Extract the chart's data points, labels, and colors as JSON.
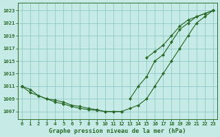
{
  "x": [
    0,
    1,
    2,
    3,
    4,
    5,
    6,
    7,
    8,
    9,
    10,
    11,
    12,
    13,
    14,
    15,
    16,
    17,
    18,
    19,
    20,
    21,
    22,
    23
  ],
  "lines": [
    [
      1011,
      null,
      null,
      null,
      null,
      null,
      null,
      null,
      null,
      null,
      null,
      null,
      null,
      1009,
      1011,
      1012.5,
      1015,
      1016,
      1018,
      1020,
      1021,
      1022,
      1022.5,
      1023
    ],
    [
      1011,
      null,
      null,
      null,
      null,
      null,
      null,
      null,
      null,
      null,
      null,
      null,
      null,
      null,
      null,
      1015.5,
      1016.5,
      1017.5,
      1019,
      1020.5,
      1021.5,
      1022,
      1022.5,
      1023
    ],
    [
      1011,
      1010,
      1009.5,
      1009,
      1008.5,
      1008.2,
      1007.8,
      1007.5,
      1007.3,
      1007.2,
      1007,
      1007,
      1007,
      1007.5,
      1008,
      1009,
      1011,
      1013,
      1015,
      1017,
      1019,
      1021,
      1022,
      1023
    ],
    [
      1011,
      1010.5,
      1009.5,
      1009,
      1008.8,
      1008.5,
      1008,
      1007.8,
      1007.5,
      1007.3,
      1007,
      1007,
      1007,
      null,
      null,
      null,
      null,
      null,
      null,
      null,
      null,
      null,
      null,
      null
    ]
  ],
  "bg_color": "#c6ebe6",
  "grid_color": "#86c4be",
  "line_color": "#2a6a2a",
  "yticks": [
    1007,
    1009,
    1011,
    1013,
    1015,
    1017,
    1019,
    1021,
    1023
  ],
  "xlabel": "Graphe pression niveau de la mer (hPa)",
  "ylim": [
    1005.8,
    1024.2
  ],
  "xlim": [
    -0.5,
    23.5
  ]
}
